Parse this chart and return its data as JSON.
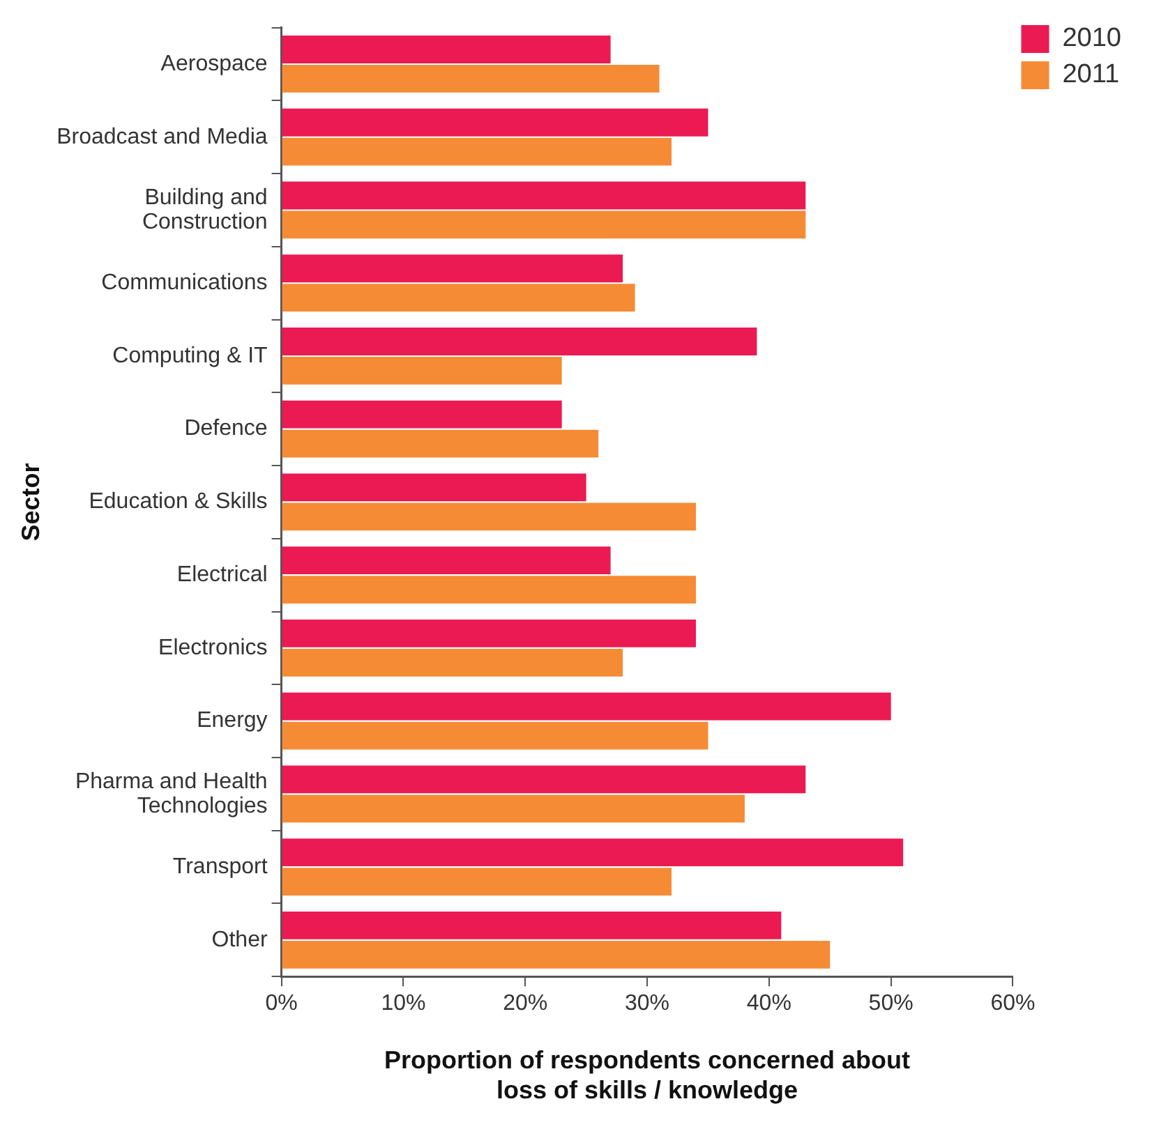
{
  "chart_data": {
    "type": "bar",
    "orientation": "horizontal",
    "xlabel": "Proportion of respondents concerned about loss of skills / knowledge",
    "ylabel": "Sector",
    "categories": [
      "Aerospace",
      "Broadcast and Media",
      "Building and Construction",
      "Communications",
      "Computing & IT",
      "Defence",
      "Education & Skills",
      "Electrical",
      "Electronics",
      "Energy",
      "Pharma and Health Technologies",
      "Transport",
      "Other"
    ],
    "series": [
      {
        "name": "2010",
        "color": "#ec1a52",
        "values": [
          27,
          35,
          43,
          28,
          39,
          23,
          25,
          27,
          34,
          50,
          43,
          51,
          41
        ]
      },
      {
        "name": "2011",
        "color": "#f58b35",
        "values": [
          31,
          32,
          43,
          29,
          23,
          26,
          34,
          34,
          28,
          35,
          38,
          32,
          45
        ]
      }
    ],
    "xlim": [
      0,
      60
    ],
    "xticks": [
      {
        "value": 0,
        "label": "0%"
      },
      {
        "value": 10,
        "label": "10%"
      },
      {
        "value": 20,
        "label": "20%"
      },
      {
        "value": 30,
        "label": "30%"
      },
      {
        "value": 40,
        "label": "40%"
      },
      {
        "value": 50,
        "label": "50%"
      },
      {
        "value": 60,
        "label": "60%"
      }
    ],
    "legend": "top right"
  }
}
